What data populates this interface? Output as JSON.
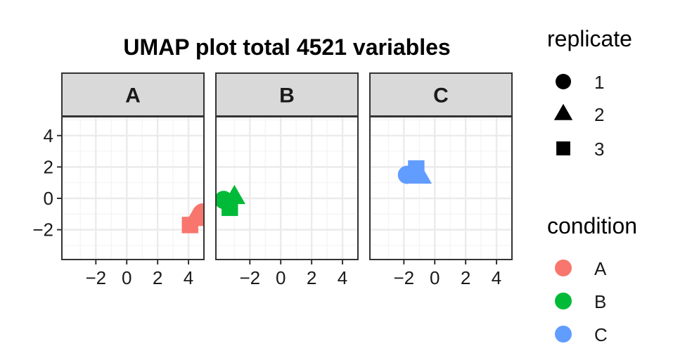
{
  "chart_data": {
    "type": "scatter",
    "title": "UMAP plot total 4521 variables",
    "xlabel": "",
    "ylabel": "",
    "facets": [
      "A",
      "B",
      "C"
    ],
    "xlim": [
      -4.2,
      5.0
    ],
    "ylim": [
      -3.9,
      5.2
    ],
    "x_ticks": [
      -2,
      0,
      2,
      4
    ],
    "x_tick_labels": [
      "−2",
      "0",
      "2",
      "4"
    ],
    "y_ticks": [
      -2,
      0,
      2,
      4
    ],
    "y_tick_labels": [
      "−2",
      "0",
      "2",
      "4"
    ],
    "grid": true,
    "points": [
      {
        "facet": "A",
        "condition": "A",
        "replicate": "1",
        "x": 4.9,
        "y": -0.9
      },
      {
        "facet": "A",
        "condition": "A",
        "replicate": "2",
        "x": 4.4,
        "y": -1.3
      },
      {
        "facet": "A",
        "condition": "A",
        "replicate": "3",
        "x": 4.1,
        "y": -1.7
      },
      {
        "facet": "B",
        "condition": "B",
        "replicate": "1",
        "x": -3.7,
        "y": -0.1
      },
      {
        "facet": "B",
        "condition": "B",
        "replicate": "2",
        "x": -3.0,
        "y": 0.1
      },
      {
        "facet": "B",
        "condition": "B",
        "replicate": "3",
        "x": -3.3,
        "y": -0.6
      },
      {
        "facet": "C",
        "condition": "C",
        "replicate": "1",
        "x": -1.8,
        "y": 1.5
      },
      {
        "facet": "C",
        "condition": "C",
        "replicate": "2",
        "x": -0.9,
        "y": 1.4
      },
      {
        "facet": "C",
        "condition": "C",
        "replicate": "3",
        "x": -1.2,
        "y": 1.9
      }
    ],
    "legend": {
      "placement": "right",
      "replicate": {
        "title": "replicate",
        "items": [
          {
            "label": "1",
            "shape": "circle"
          },
          {
            "label": "2",
            "shape": "triangle"
          },
          {
            "label": "3",
            "shape": "square"
          }
        ]
      },
      "condition": {
        "title": "condition",
        "items": [
          {
            "label": "A",
            "color": "#F8766D"
          },
          {
            "label": "B",
            "color": "#00BA38"
          },
          {
            "label": "C",
            "color": "#619CFF"
          }
        ]
      }
    }
  },
  "colors": {
    "strip_bg": "#d9d9d9",
    "panel_border": "#333333",
    "grid_major": "#ebebeb",
    "grid_minor": "#f3f3f3"
  }
}
